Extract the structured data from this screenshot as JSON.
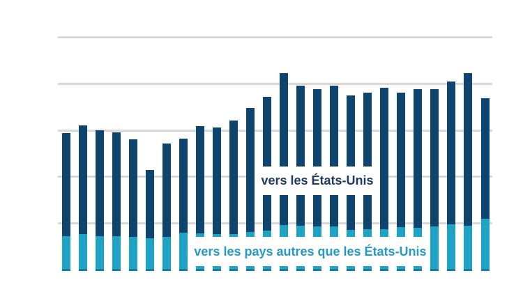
{
  "chart_data": {
    "type": "bar",
    "stacked": true,
    "orientation": "vertical",
    "title": "",
    "bar_count": 26,
    "x_axis": {
      "tick_labels_visible": false
    },
    "y_axis": {
      "tick_labels_visible": false,
      "gridlines_visible": true,
      "gridline_count": 5,
      "units_note": "values estimated in unlabeled gridline intervals; 1.0 = one gridline spacing"
    },
    "legend_position": "labels inside plot area",
    "series": [
      {
        "name": "vers les États-Unis",
        "stack_position": "top",
        "color": "#0e4470",
        "values": [
          2.23,
          2.34,
          2.29,
          2.24,
          2.1,
          1.47,
          2.02,
          2.03,
          2.31,
          2.3,
          2.45,
          2.68,
          2.89,
          3.28,
          3.02,
          2.96,
          3.04,
          2.9,
          2.95,
          3.05,
          2.9,
          2.99,
          2.96,
          3.08,
          3.29,
          2.6
        ]
      },
      {
        "name": "vers les pays autres que les États-Unis",
        "stack_position": "bottom",
        "color": "#1ea2c6",
        "values": [
          0.75,
          0.8,
          0.75,
          0.75,
          0.74,
          0.7,
          0.73,
          0.82,
          0.81,
          0.8,
          0.8,
          0.84,
          0.87,
          0.99,
          0.98,
          0.96,
          0.96,
          0.89,
          0.9,
          0.9,
          0.95,
          0.93,
          0.96,
          1.01,
          0.98,
          1.13
        ]
      }
    ],
    "annotations": [
      {
        "text": "vers les États-Unis",
        "color": "#1f3864"
      },
      {
        "text": "vers les pays autres que les États-Unis",
        "color": "#2499c6"
      }
    ],
    "colors": {
      "gridline": "#d8d8d8",
      "background": "#ffffff"
    }
  }
}
